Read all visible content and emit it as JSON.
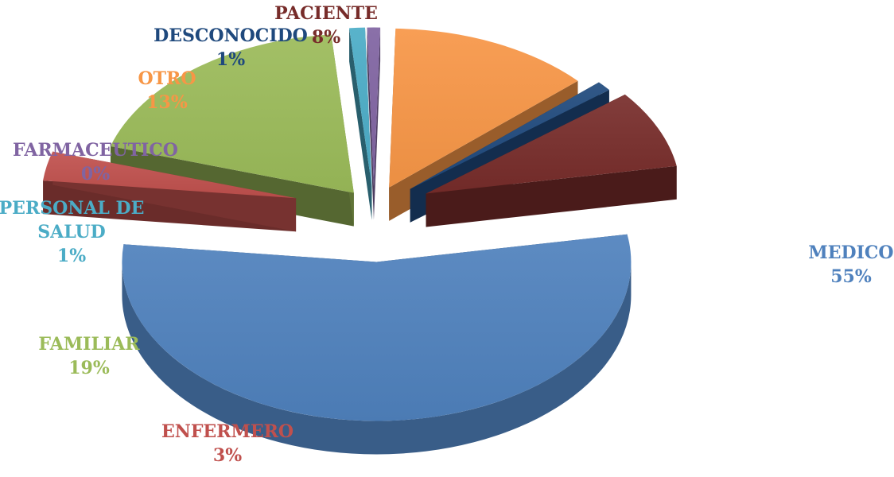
{
  "chart_data": {
    "type": "pie",
    "style": "3d-exploded",
    "legend": "none",
    "slices": [
      {
        "label": "MEDICO",
        "value": 55,
        "value_label": "55%",
        "color": "#4f81bd",
        "label_lines": [
          "MEDICO"
        ]
      },
      {
        "label": "ENFERMERO",
        "value": 3,
        "value_label": "3%",
        "color": "#c0504d",
        "label_lines": [
          "ENFERMERO"
        ]
      },
      {
        "label": "FAMILIAR",
        "value": 19,
        "value_label": "19%",
        "color": "#9bbb59",
        "label_lines": [
          "FAMILIAR"
        ]
      },
      {
        "label": "PERSONAL DE SALUD",
        "value": 1,
        "value_label": "1%",
        "color": "#4bacc6",
        "label_lines": [
          "PERSONAL DE",
          "SALUD"
        ]
      },
      {
        "label": "FARMACEUTICO",
        "value": 0,
        "value_label": "0%",
        "color": "#8064a2",
        "label_lines": [
          "FARMACEUTICO"
        ]
      },
      {
        "label": "OTRO",
        "value": 13,
        "value_label": "13%",
        "color": "#f79646",
        "label_lines": [
          "OTRO"
        ]
      },
      {
        "label": "DESCONOCIDO",
        "value": 1,
        "value_label": "1%",
        "color": "#1f497d",
        "label_lines": [
          "DESCONOCIDO"
        ]
      },
      {
        "label": "PACIENTE",
        "value": 8,
        "value_label": "8%",
        "color": "#772c2a",
        "label_lines": [
          "PACIENTE"
        ]
      }
    ]
  }
}
